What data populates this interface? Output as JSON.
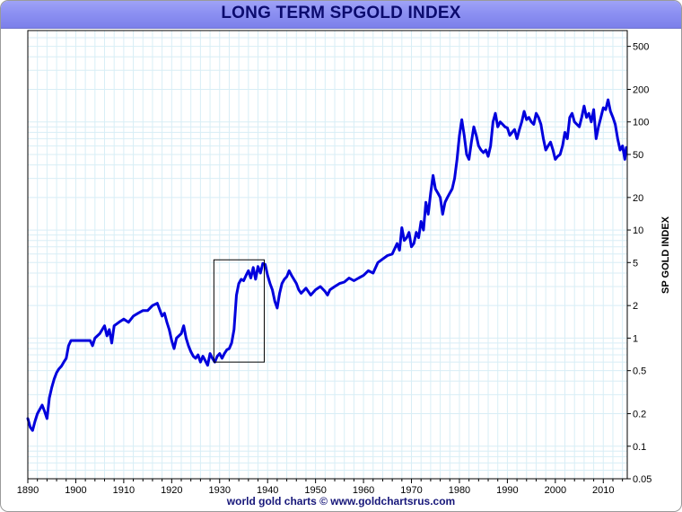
{
  "footer": "world gold charts © www.goldchartsrus.com",
  "colors": {
    "line": "#0000dd",
    "title_bar": "#8c90f2",
    "title_text": "#0b0b6e",
    "grid": "#d8eef6"
  },
  "chart_data": {
    "type": "line",
    "title": "LONG TERM SPGOLD INDEX",
    "ylabel": "SP GOLD INDEX",
    "xlabel": "",
    "x_scale": "linear",
    "y_scale": "log",
    "xlim": [
      1890,
      2015
    ],
    "ylim": [
      0.05,
      700
    ],
    "y_axis_side": "right",
    "grid": true,
    "legend": "none",
    "x_ticks": [
      "1890",
      "1900",
      "1910",
      "1920",
      "1930",
      "1940",
      "1950",
      "1960",
      "1970",
      "1980",
      "1990",
      "2000",
      "2010"
    ],
    "y_ticks": [
      "0.05",
      "0.1",
      "0.2",
      "0.5",
      "1",
      "2",
      "5",
      "10",
      "20",
      "50",
      "100",
      "200",
      "500"
    ],
    "annotation": {
      "type": "rectangle",
      "x_range": [
        1928.8,
        1939.3
      ],
      "y_range": [
        0.6,
        5.3
      ]
    },
    "series": [
      {
        "color": "#0000dd",
        "points": [
          [
            1890.0,
            0.18
          ],
          [
            1890.5,
            0.15
          ],
          [
            1891.0,
            0.14
          ],
          [
            1891.5,
            0.17
          ],
          [
            1892.0,
            0.2
          ],
          [
            1892.5,
            0.22
          ],
          [
            1893.0,
            0.24
          ],
          [
            1893.5,
            0.21
          ],
          [
            1894.0,
            0.18
          ],
          [
            1894.5,
            0.28
          ],
          [
            1895.0,
            0.35
          ],
          [
            1895.5,
            0.42
          ],
          [
            1896.0,
            0.48
          ],
          [
            1896.5,
            0.52
          ],
          [
            1897.0,
            0.55
          ],
          [
            1897.5,
            0.6
          ],
          [
            1898.0,
            0.65
          ],
          [
            1898.5,
            0.85
          ],
          [
            1899.0,
            0.95
          ],
          [
            1900.0,
            0.95
          ],
          [
            1901.0,
            0.95
          ],
          [
            1902.0,
            0.95
          ],
          [
            1903.0,
            0.95
          ],
          [
            1903.5,
            0.85
          ],
          [
            1904.0,
            1.0
          ],
          [
            1905.0,
            1.1
          ],
          [
            1906.0,
            1.3
          ],
          [
            1906.5,
            1.05
          ],
          [
            1907.0,
            1.2
          ],
          [
            1907.5,
            0.9
          ],
          [
            1908.0,
            1.3
          ],
          [
            1909.0,
            1.4
          ],
          [
            1910.0,
            1.5
          ],
          [
            1911.0,
            1.4
          ],
          [
            1912.0,
            1.6
          ],
          [
            1913.0,
            1.7
          ],
          [
            1914.0,
            1.8
          ],
          [
            1915.0,
            1.8
          ],
          [
            1916.0,
            2.0
          ],
          [
            1917.0,
            2.1
          ],
          [
            1918.0,
            1.6
          ],
          [
            1918.5,
            1.7
          ],
          [
            1919.0,
            1.4
          ],
          [
            1919.5,
            1.2
          ],
          [
            1920.0,
            0.95
          ],
          [
            1920.5,
            0.8
          ],
          [
            1921.0,
            1.0
          ],
          [
            1922.0,
            1.1
          ],
          [
            1922.5,
            1.3
          ],
          [
            1923.0,
            1.0
          ],
          [
            1923.5,
            0.85
          ],
          [
            1924.0,
            0.75
          ],
          [
            1924.5,
            0.68
          ],
          [
            1925.0,
            0.65
          ],
          [
            1925.5,
            0.7
          ],
          [
            1926.0,
            0.6
          ],
          [
            1926.5,
            0.68
          ],
          [
            1927.0,
            0.62
          ],
          [
            1927.5,
            0.56
          ],
          [
            1928.0,
            0.72
          ],
          [
            1928.5,
            0.65
          ],
          [
            1929.0,
            0.6
          ],
          [
            1929.5,
            0.68
          ],
          [
            1930.0,
            0.72
          ],
          [
            1930.5,
            0.65
          ],
          [
            1931.0,
            0.72
          ],
          [
            1931.5,
            0.78
          ],
          [
            1932.0,
            0.8
          ],
          [
            1932.5,
            0.9
          ],
          [
            1933.0,
            1.2
          ],
          [
            1933.5,
            2.5
          ],
          [
            1934.0,
            3.2
          ],
          [
            1934.5,
            3.5
          ],
          [
            1935.0,
            3.4
          ],
          [
            1935.5,
            3.8
          ],
          [
            1936.0,
            4.2
          ],
          [
            1936.5,
            3.6
          ],
          [
            1937.0,
            4.5
          ],
          [
            1937.5,
            3.5
          ],
          [
            1938.0,
            4.6
          ],
          [
            1938.5,
            4.0
          ],
          [
            1939.0,
            4.9
          ],
          [
            1939.5,
            4.8
          ],
          [
            1940.0,
            3.8
          ],
          [
            1940.5,
            3.2
          ],
          [
            1941.0,
            2.8
          ],
          [
            1941.5,
            2.2
          ],
          [
            1942.0,
            1.9
          ],
          [
            1942.5,
            2.6
          ],
          [
            1943.0,
            3.2
          ],
          [
            1943.5,
            3.5
          ],
          [
            1944.0,
            3.7
          ],
          [
            1944.5,
            4.2
          ],
          [
            1945.0,
            3.8
          ],
          [
            1946.0,
            3.2
          ],
          [
            1946.5,
            2.8
          ],
          [
            1947.0,
            2.6
          ],
          [
            1948.0,
            2.9
          ],
          [
            1949.0,
            2.5
          ],
          [
            1950.0,
            2.8
          ],
          [
            1951.0,
            3.0
          ],
          [
            1952.0,
            2.7
          ],
          [
            1952.5,
            2.5
          ],
          [
            1953.0,
            2.8
          ],
          [
            1954.0,
            3.0
          ],
          [
            1955.0,
            3.2
          ],
          [
            1956.0,
            3.3
          ],
          [
            1957.0,
            3.6
          ],
          [
            1958.0,
            3.4
          ],
          [
            1959.0,
            3.6
          ],
          [
            1960.0,
            3.8
          ],
          [
            1961.0,
            4.2
          ],
          [
            1962.0,
            4.0
          ],
          [
            1963.0,
            5.0
          ],
          [
            1964.0,
            5.4
          ],
          [
            1965.0,
            5.8
          ],
          [
            1966.0,
            6.0
          ],
          [
            1967.0,
            7.5
          ],
          [
            1967.5,
            6.5
          ],
          [
            1968.0,
            10.5
          ],
          [
            1968.5,
            8.0
          ],
          [
            1969.0,
            8.5
          ],
          [
            1969.5,
            9.5
          ],
          [
            1970.0,
            7.0
          ],
          [
            1970.5,
            7.5
          ],
          [
            1971.0,
            9.5
          ],
          [
            1971.5,
            8.5
          ],
          [
            1972.0,
            12.0
          ],
          [
            1972.5,
            10.0
          ],
          [
            1973.0,
            18.0
          ],
          [
            1973.5,
            14.0
          ],
          [
            1974.0,
            22.0
          ],
          [
            1974.5,
            32.0
          ],
          [
            1975.0,
            24.0
          ],
          [
            1975.5,
            22.0
          ],
          [
            1976.0,
            20.0
          ],
          [
            1976.5,
            14.0
          ],
          [
            1977.0,
            18.0
          ],
          [
            1977.5,
            20.0
          ],
          [
            1978.0,
            22.0
          ],
          [
            1978.5,
            24.0
          ],
          [
            1979.0,
            30.0
          ],
          [
            1979.5,
            45.0
          ],
          [
            1980.0,
            75.0
          ],
          [
            1980.5,
            105.0
          ],
          [
            1981.0,
            75.0
          ],
          [
            1981.5,
            50.0
          ],
          [
            1982.0,
            45.0
          ],
          [
            1982.5,
            65.0
          ],
          [
            1983.0,
            90.0
          ],
          [
            1983.5,
            75.0
          ],
          [
            1984.0,
            60.0
          ],
          [
            1984.5,
            55.0
          ],
          [
            1985.0,
            52.0
          ],
          [
            1985.5,
            55.0
          ],
          [
            1986.0,
            48.0
          ],
          [
            1986.5,
            60.0
          ],
          [
            1987.0,
            100.0
          ],
          [
            1987.5,
            120.0
          ],
          [
            1988.0,
            90.0
          ],
          [
            1988.5,
            100.0
          ],
          [
            1989.0,
            95.0
          ],
          [
            1989.5,
            90.0
          ],
          [
            1990.0,
            88.0
          ],
          [
            1990.5,
            75.0
          ],
          [
            1991.0,
            80.0
          ],
          [
            1991.5,
            85.0
          ],
          [
            1992.0,
            70.0
          ],
          [
            1992.5,
            85.0
          ],
          [
            1993.0,
            100.0
          ],
          [
            1993.5,
            125.0
          ],
          [
            1994.0,
            105.0
          ],
          [
            1994.5,
            110.0
          ],
          [
            1995.0,
            100.0
          ],
          [
            1995.5,
            95.0
          ],
          [
            1996.0,
            120.0
          ],
          [
            1996.5,
            110.0
          ],
          [
            1997.0,
            95.0
          ],
          [
            1997.5,
            70.0
          ],
          [
            1998.0,
            55.0
          ],
          [
            1998.5,
            60.0
          ],
          [
            1999.0,
            65.0
          ],
          [
            1999.5,
            55.0
          ],
          [
            2000.0,
            45.0
          ],
          [
            2000.5,
            48.0
          ],
          [
            2001.0,
            50.0
          ],
          [
            2001.5,
            60.0
          ],
          [
            2002.0,
            80.0
          ],
          [
            2002.5,
            70.0
          ],
          [
            2003.0,
            110.0
          ],
          [
            2003.5,
            120.0
          ],
          [
            2004.0,
            100.0
          ],
          [
            2004.5,
            95.0
          ],
          [
            2005.0,
            90.0
          ],
          [
            2005.5,
            110.0
          ],
          [
            2006.0,
            140.0
          ],
          [
            2006.5,
            110.0
          ],
          [
            2007.0,
            120.0
          ],
          [
            2007.5,
            100.0
          ],
          [
            2008.0,
            130.0
          ],
          [
            2008.5,
            70.0
          ],
          [
            2009.0,
            90.0
          ],
          [
            2009.5,
            110.0
          ],
          [
            2010.0,
            135.0
          ],
          [
            2010.5,
            130.0
          ],
          [
            2011.0,
            160.0
          ],
          [
            2011.5,
            125.0
          ],
          [
            2012.0,
            110.0
          ],
          [
            2012.5,
            95.0
          ],
          [
            2013.0,
            70.0
          ],
          [
            2013.5,
            55.0
          ],
          [
            2014.0,
            60.0
          ],
          [
            2014.5,
            45.0
          ],
          [
            2014.8,
            58.0
          ]
        ]
      }
    ]
  }
}
